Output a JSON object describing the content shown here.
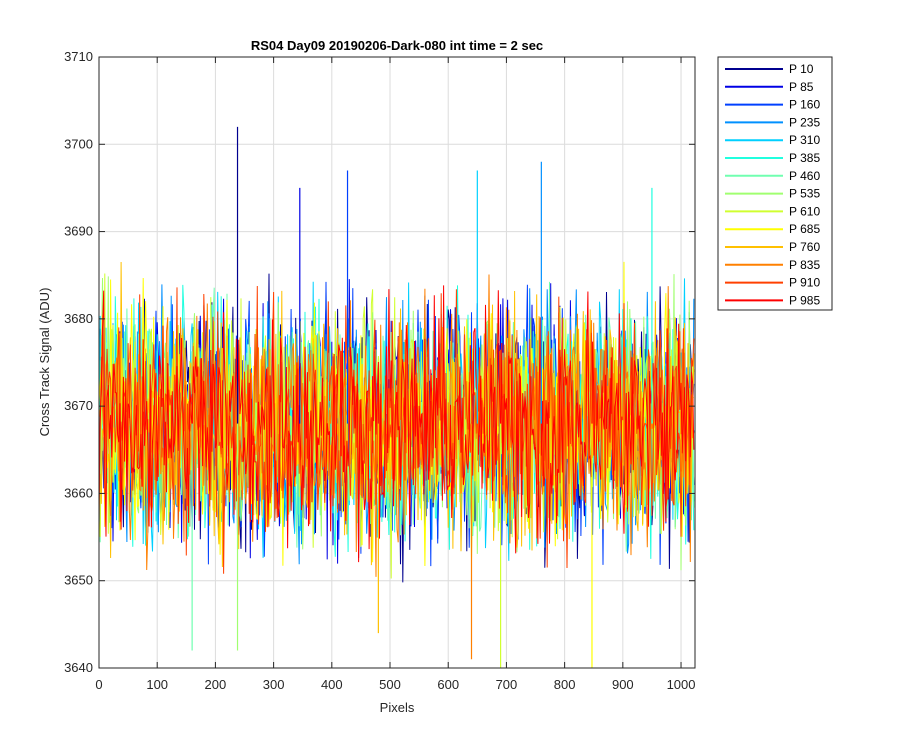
{
  "chart_data": {
    "type": "line",
    "title": "RS04 Day09 20190206-Dark-080 int time = 2 sec",
    "xlabel": "Pixels",
    "ylabel": "Cross Track Signal (ADU)",
    "xlim": [
      0,
      1024
    ],
    "ylim": [
      3640,
      3710
    ],
    "xticks": [
      0,
      100,
      200,
      300,
      400,
      500,
      600,
      700,
      800,
      900,
      1000
    ],
    "yticks": [
      3640,
      3650,
      3660,
      3670,
      3680,
      3690,
      3700,
      3710
    ],
    "grid": true,
    "legend_position": "outside-top-right",
    "series_mean": 3668,
    "series_half_range": 12,
    "series": [
      {
        "name": "P 10",
        "color": "#00008f"
      },
      {
        "name": "P 85",
        "color": "#0000e5"
      },
      {
        "name": "P 160",
        "color": "#0040ff"
      },
      {
        "name": "P 235",
        "color": "#0090ff"
      },
      {
        "name": "P 310",
        "color": "#00d0ff"
      },
      {
        "name": "P 385",
        "color": "#20ffdf"
      },
      {
        "name": "P 460",
        "color": "#70ffb0"
      },
      {
        "name": "P 535",
        "color": "#a0ff70"
      },
      {
        "name": "P 610",
        "color": "#d0ff30"
      },
      {
        "name": "P 685",
        "color": "#ffff00"
      },
      {
        "name": "P 760",
        "color": "#ffc000"
      },
      {
        "name": "P 835",
        "color": "#ff8000"
      },
      {
        "name": "P 910",
        "color": "#ff4000"
      },
      {
        "name": "P 985",
        "color": "#ff0000"
      }
    ],
    "spikes": [
      {
        "x": 238,
        "y": 3702
      },
      {
        "x": 345,
        "y": 3695
      },
      {
        "x": 427,
        "y": 3697
      },
      {
        "x": 760,
        "y": 3698
      },
      {
        "x": 650,
        "y": 3697
      },
      {
        "x": 950,
        "y": 3695
      },
      {
        "x": 160,
        "y": 3642
      },
      {
        "x": 238,
        "y": 3642
      },
      {
        "x": 690,
        "y": 3640
      },
      {
        "x": 847,
        "y": 3640
      },
      {
        "x": 480,
        "y": 3644
      },
      {
        "x": 640,
        "y": 3641
      }
    ]
  }
}
